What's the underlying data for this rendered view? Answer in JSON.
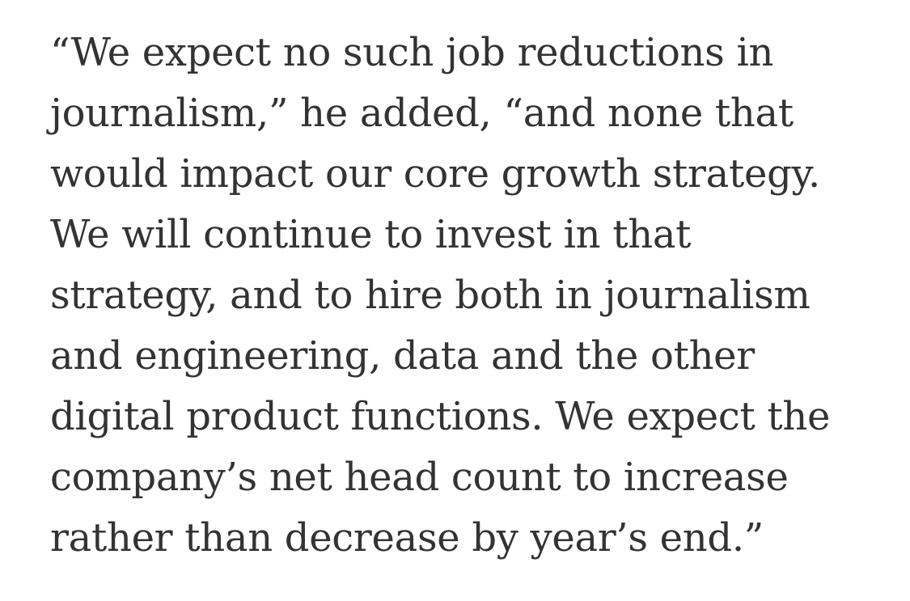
{
  "article": {
    "paragraph_lines": [
      "“We expect no such job reductions in",
      "journalism,” he added, “and none that",
      "would impact our core growth strategy.",
      "We will continue to invest in that",
      "strategy, and to hire both in journalism",
      "and engineering, data and the other",
      "digital product functions. We expect the",
      "company’s net head count to increase",
      "rather than decrease by year’s end.”"
    ]
  }
}
